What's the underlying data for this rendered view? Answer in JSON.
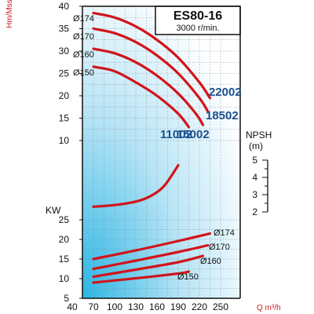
{
  "chart_data": [
    {
      "type": "line",
      "panel": "head",
      "title": "ES80-16",
      "subtitle": "3000 r/min.",
      "ylabel": "Hm/Mss",
      "xlabel": "Q m³/h",
      "x_ticks": [
        40,
        70,
        100,
        130,
        160,
        190,
        220,
        250
      ],
      "y_ticks": [
        10,
        15,
        20,
        25,
        30,
        35,
        40
      ],
      "ylim": [
        5,
        40
      ],
      "grid": true,
      "diameter_labels": [
        "Ø174",
        "Ø170",
        "Ø160",
        "Ø150"
      ],
      "model_labels": [
        "22002",
        "18502",
        "15002",
        "11002"
      ],
      "series": [
        {
          "name": "Ø174",
          "model": "22002",
          "x": [
            70,
            100,
            130,
            160,
            190,
            220,
            235
          ],
          "y": [
            38.5,
            37.5,
            35.5,
            32.5,
            28.5,
            23,
            19.5
          ]
        },
        {
          "name": "Ø170",
          "model": "18502",
          "x": [
            70,
            100,
            130,
            160,
            190,
            220,
            232
          ],
          "y": [
            35,
            34,
            32,
            29,
            25,
            19.5,
            16.5
          ]
        },
        {
          "name": "Ø160",
          "model": "15002",
          "x": [
            70,
            100,
            130,
            160,
            190,
            215,
            225
          ],
          "y": [
            30.5,
            29.5,
            27.5,
            24.5,
            20.5,
            16,
            13.5
          ]
        },
        {
          "name": "Ø150",
          "model": "11002",
          "x": [
            70,
            100,
            130,
            160,
            190,
            205
          ],
          "y": [
            26.5,
            25.5,
            23,
            20,
            16,
            13
          ]
        }
      ]
    },
    {
      "type": "line",
      "panel": "npsh",
      "ylabel": "NPSH",
      "yunit": "(m)",
      "y_ticks": [
        2,
        3,
        4,
        5
      ],
      "ylim": [
        2,
        5
      ],
      "series": [
        {
          "x": [
            70,
            100,
            130,
            150,
            170,
            190
          ],
          "y": [
            2.3,
            2.4,
            2.6,
            2.9,
            3.5,
            4.7
          ]
        }
      ]
    },
    {
      "type": "line",
      "panel": "power",
      "ylabel": "KW",
      "y_ticks": [
        5,
        10,
        15,
        20,
        25
      ],
      "ylim": [
        5,
        25
      ],
      "diameter_labels": [
        "Ø174",
        "Ø170",
        "Ø160",
        "Ø150"
      ],
      "series": [
        {
          "name": "Ø174",
          "x": [
            70,
            130,
            190,
            235
          ],
          "y": [
            15,
            17.2,
            19.6,
            21.5
          ]
        },
        {
          "name": "Ø170",
          "x": [
            70,
            130,
            190,
            232
          ],
          "y": [
            12.5,
            14.6,
            16.8,
            18.5
          ]
        },
        {
          "name": "Ø160",
          "x": [
            70,
            130,
            190,
            225
          ],
          "y": [
            10.5,
            12.3,
            14.2,
            15.8
          ]
        },
        {
          "name": "Ø150",
          "x": [
            70,
            130,
            190,
            205
          ],
          "y": [
            9,
            10.1,
            11.3,
            11.8
          ]
        }
      ]
    }
  ]
}
